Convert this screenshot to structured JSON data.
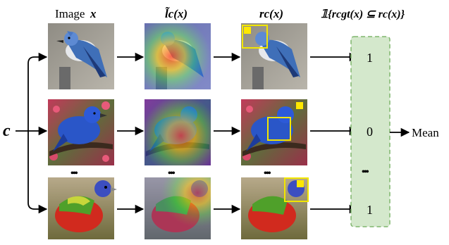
{
  "headers": {
    "image": "Image",
    "image_var": "x",
    "cam": "l̃c(x)",
    "region": "rc(x)",
    "indicator": "𝟙{rcgt(x) ⊆ rc(x)}"
  },
  "input_label": "c",
  "output_label": "Mean",
  "ellipsis": "•••",
  "rows": [
    {
      "bird": "blue jay",
      "indicator": "1"
    },
    {
      "bird": "indigo bunting",
      "indicator": "0"
    },
    {
      "bird": "painted bunting",
      "indicator": "1"
    }
  ],
  "colors": {
    "indicator_box_fill": "#d4e8cc",
    "indicator_box_border": "#7fb56d",
    "bbox": "#f2e600",
    "gt_box": "#ffe800",
    "arrow": "#000000"
  },
  "icons": [
    "arrow-right-icon",
    "ellipsis-icon"
  ]
}
